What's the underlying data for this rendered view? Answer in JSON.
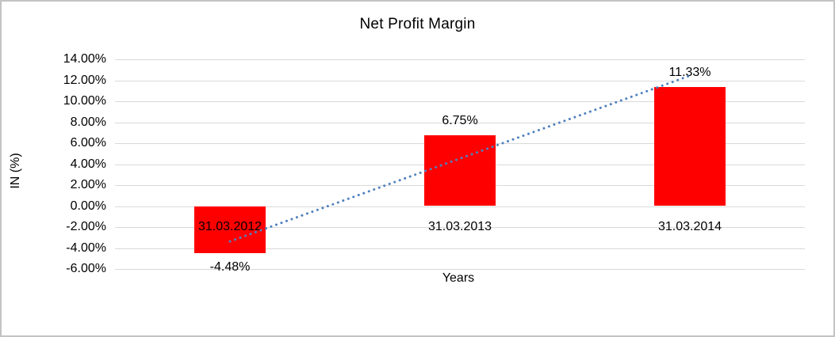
{
  "chart_data": {
    "type": "bar",
    "title": "Net Profit Margin",
    "xlabel": "Years",
    "ylabel": "IN (%)",
    "categories": [
      "31.03.2012",
      "31.03.2013",
      "31.03.2014"
    ],
    "values": [
      -4.48,
      6.75,
      11.33
    ],
    "data_labels": [
      "-4.48%",
      "6.75%",
      "11.33%"
    ],
    "y_ticks": [
      "14.00%",
      "12.00%",
      "10.00%",
      "8.00%",
      "6.00%",
      "4.00%",
      "2.00%",
      "0.00%",
      "-2.00%",
      "-4.00%",
      "-6.00%"
    ],
    "ylim": [
      -6,
      14
    ],
    "y_step": 2,
    "grid": true,
    "legend": "none",
    "bar_color": "#ff0000",
    "gridline_color": "#d9d9d9",
    "trendline": {
      "style": "dotted",
      "color": "#4f81bd",
      "start_value": -3.37,
      "end_value": 12.44
    }
  }
}
